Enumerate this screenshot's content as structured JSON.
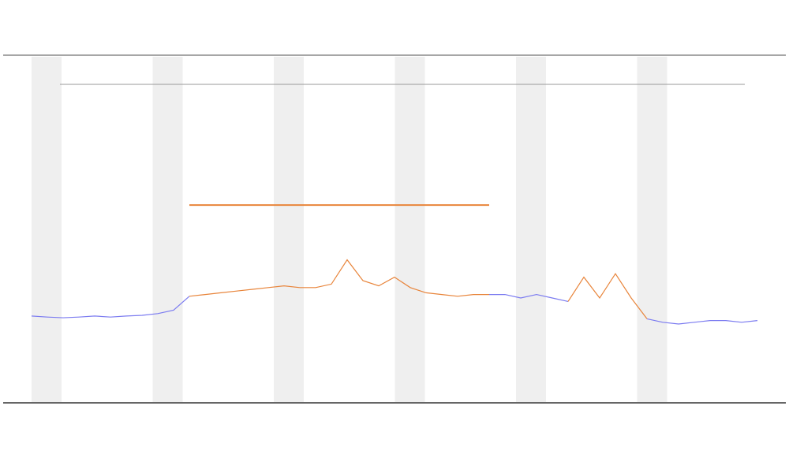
{
  "chart_data": {
    "type": "line",
    "x": [
      0,
      1,
      2,
      3,
      4,
      5,
      6,
      7,
      8,
      9,
      10,
      11,
      12,
      13,
      14,
      15,
      16,
      17,
      18,
      19,
      20,
      21,
      22,
      23,
      24,
      25,
      26,
      27,
      28,
      29,
      30,
      31,
      32,
      33,
      34,
      35,
      36,
      37,
      38,
      39,
      40,
      41,
      42,
      43,
      44,
      45,
      46
    ],
    "xlim": [
      0,
      46
    ],
    "ylim": [
      0,
      100
    ],
    "series": [
      {
        "color": "#7b7bf0",
        "values": [
          24.8,
          24.5,
          24.3,
          24.5,
          24.8,
          24.5,
          24.8,
          25,
          25.5,
          26.5,
          30.5,
          null,
          null,
          null,
          null,
          null,
          null,
          null,
          null,
          null,
          null,
          null,
          null,
          null,
          null,
          null,
          null,
          null,
          null,
          31,
          31,
          30,
          31,
          30,
          29,
          null,
          null,
          null,
          null,
          24,
          23,
          22.5,
          23,
          23.5,
          23.5,
          23,
          23.5
        ]
      },
      {
        "color": "#e8843a",
        "values": [
          null,
          null,
          null,
          null,
          null,
          null,
          null,
          null,
          null,
          null,
          30.5,
          31,
          31.5,
          32,
          32.5,
          33,
          33.5,
          33,
          33,
          34,
          41,
          35,
          33.5,
          36,
          33,
          31.5,
          31,
          30.5,
          31,
          31,
          null,
          null,
          null,
          null,
          29,
          36,
          30,
          37,
          30,
          24,
          null,
          null,
          null,
          null,
          null,
          null,
          null
        ]
      },
      {
        "color": "#e8843a",
        "values": [
          null,
          null,
          null,
          null,
          null,
          null,
          null,
          null,
          null,
          null,
          56.8,
          56.8,
          56.8,
          56.8,
          56.8,
          56.8,
          56.8,
          56.8,
          56.8,
          56.8,
          56.8,
          56.8,
          56.8,
          56.8,
          56.8,
          56.8,
          56.8,
          56.8,
          56.8,
          56.8,
          null,
          null,
          null,
          null,
          null,
          null,
          null,
          null,
          null,
          null,
          null,
          null,
          null,
          null,
          null,
          null,
          null
        ]
      }
    ]
  }
}
